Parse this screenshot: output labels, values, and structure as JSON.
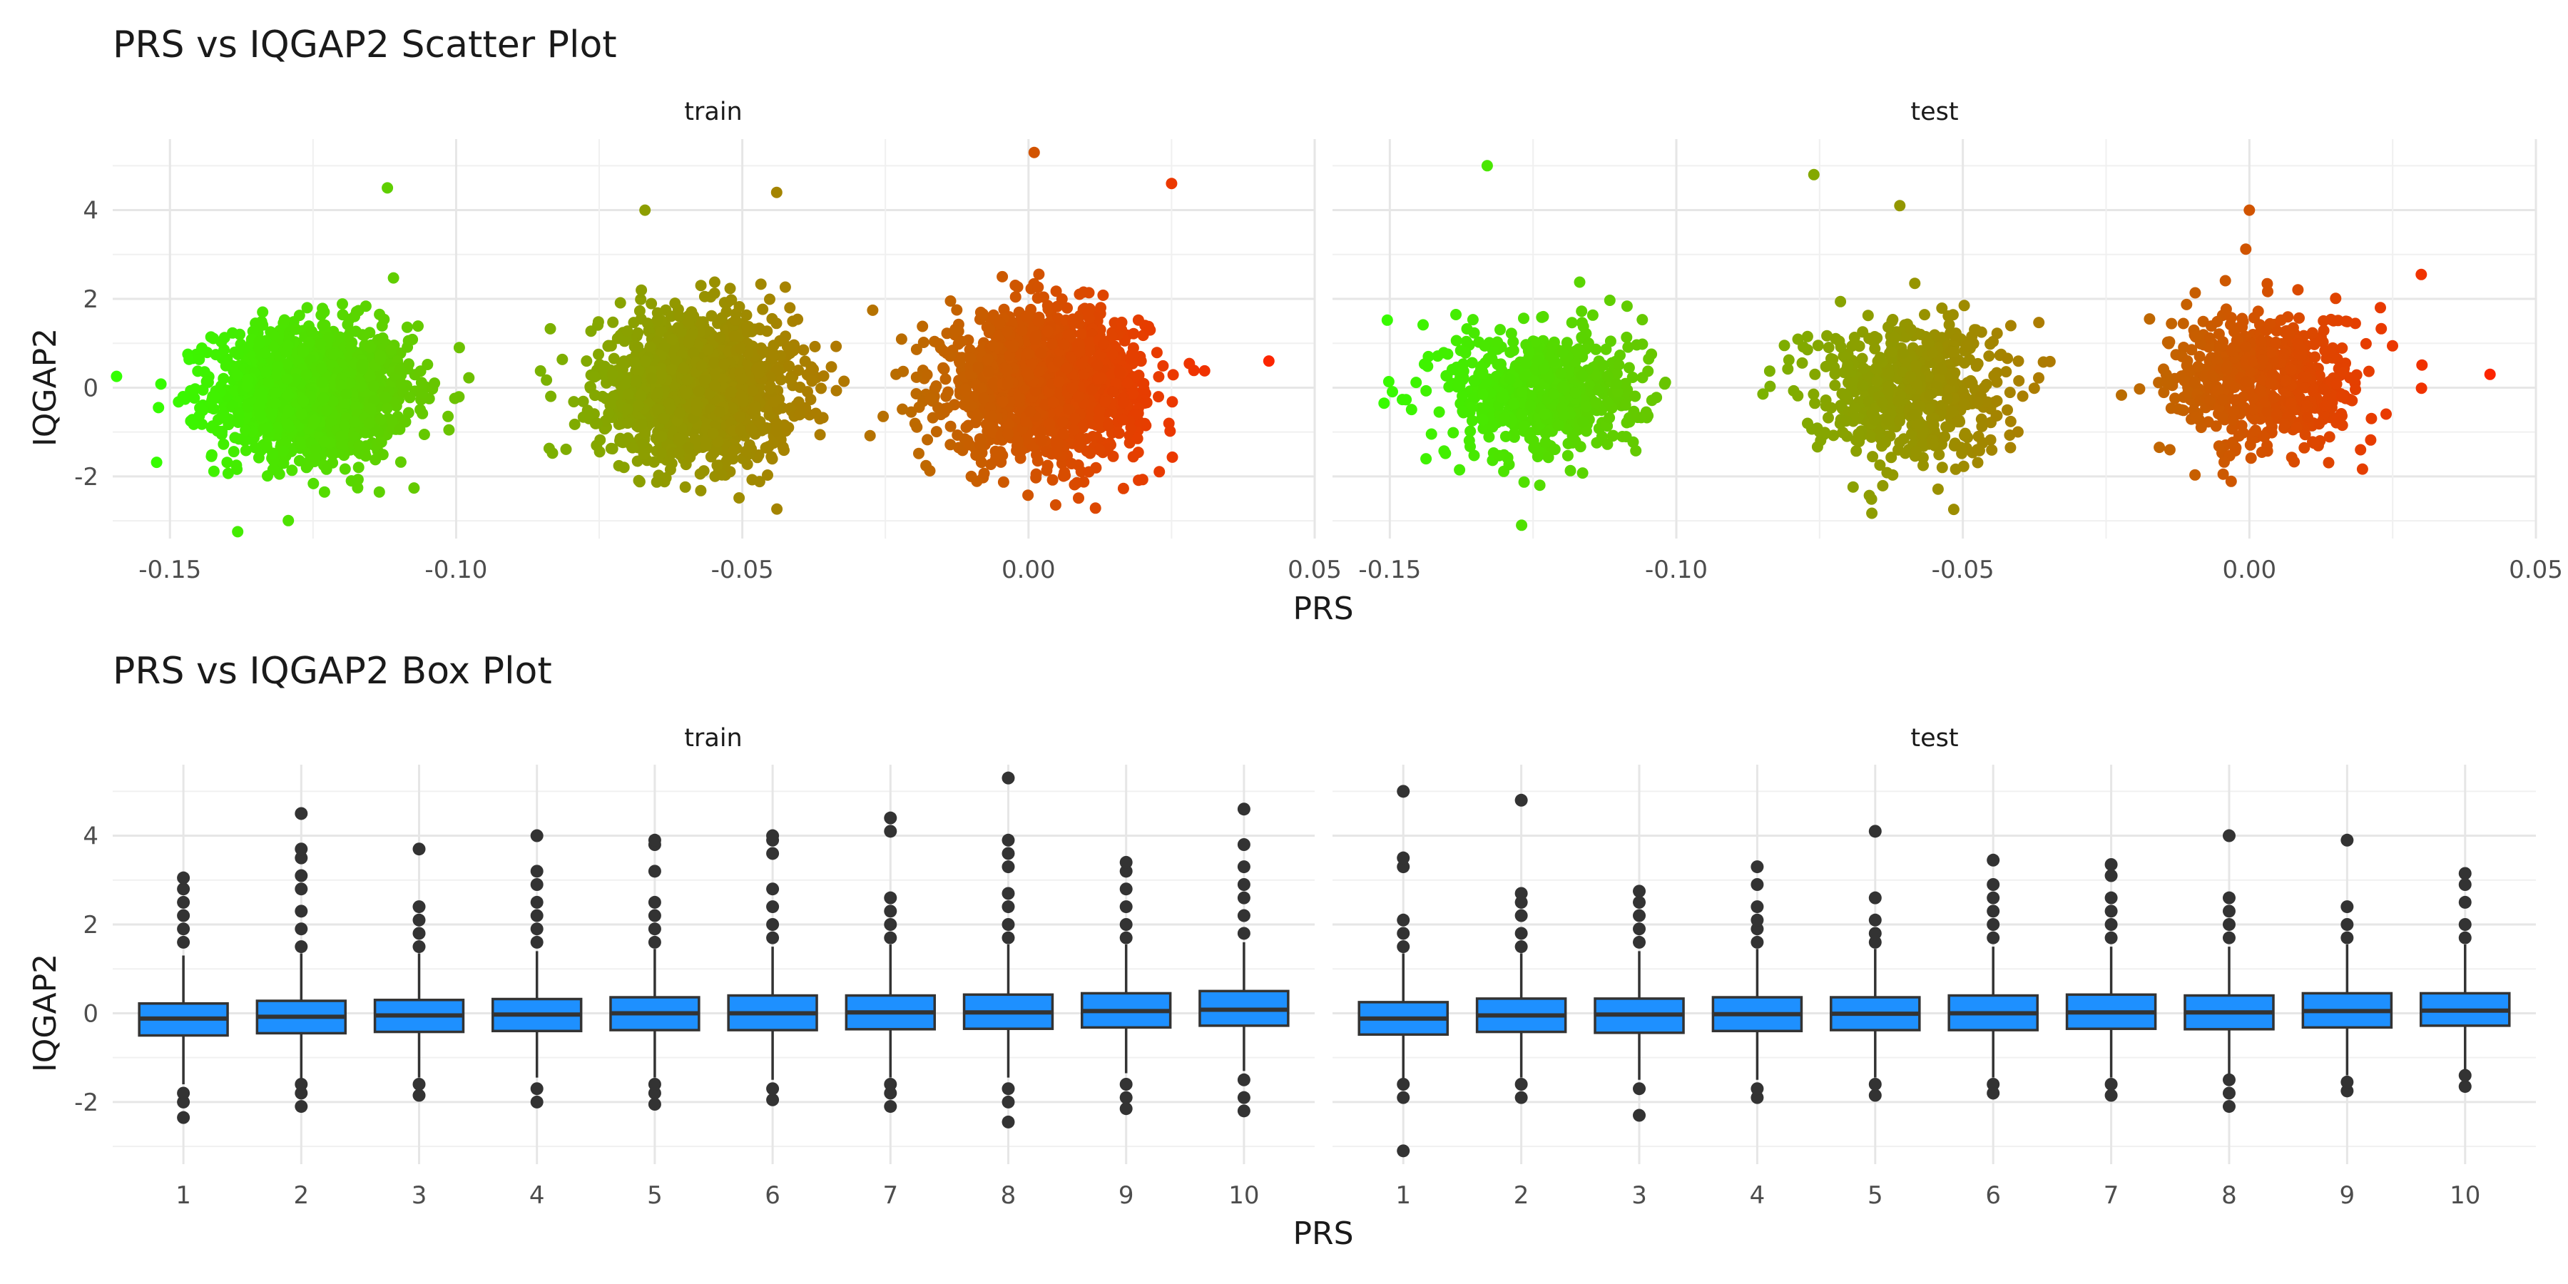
{
  "chart_data": [
    {
      "type": "scatter",
      "title": "PRS vs IQGAP2 Scatter Plot",
      "xlabel": "PRS",
      "ylabel": "IQGAP2",
      "panels": [
        {
          "name": "train",
          "clusters": [
            {
              "x_center": -0.125,
              "x_sd": 0.0085,
              "y_mean": -0.1,
              "y_sd": 0.75,
              "n": 1500
            },
            {
              "x_center": -0.058,
              "x_sd": 0.0085,
              "y_mean": 0.0,
              "y_sd": 0.8,
              "n": 1500
            },
            {
              "x_center": 0.003,
              "x_sd": 0.0085,
              "y_mean": 0.1,
              "y_sd": 0.8,
              "n": 1500
            }
          ],
          "outliers": [
            {
              "x": -0.152,
              "y": -0.45
            },
            {
              "x": -0.112,
              "y": 4.5
            },
            {
              "x": -0.044,
              "y": 4.4
            },
            {
              "x": 0.001,
              "y": 5.3
            },
            {
              "x": 0.025,
              "y": 4.6
            },
            {
              "x": 0.042,
              "y": 0.6
            },
            {
              "x": -0.123,
              "y": -2.35
            },
            {
              "x": -0.01,
              "y": -2.0
            },
            {
              "x": -0.067,
              "y": 4.0
            }
          ]
        },
        {
          "name": "test",
          "clusters": [
            {
              "x_center": -0.123,
              "x_sd": 0.0085,
              "y_mean": -0.1,
              "y_sd": 0.75,
              "n": 600
            },
            {
              "x_center": -0.06,
              "x_sd": 0.0085,
              "y_mean": 0.0,
              "y_sd": 0.8,
              "n": 600
            },
            {
              "x_center": 0.003,
              "x_sd": 0.0085,
              "y_mean": 0.1,
              "y_sd": 0.8,
              "n": 600
            }
          ],
          "outliers": [
            {
              "x": -0.133,
              "y": 5.0
            },
            {
              "x": -0.076,
              "y": 4.8
            },
            {
              "x": -0.127,
              "y": -3.1
            },
            {
              "x": 0.042,
              "y": 0.3
            },
            {
              "x": -0.061,
              "y": 4.1
            },
            {
              "x": 0.0,
              "y": 4.0
            },
            {
              "x": -0.151,
              "y": -0.35
            },
            {
              "x": 0.03,
              "y": 2.55
            }
          ]
        }
      ],
      "xlim": [
        -0.16,
        0.05
      ],
      "ylim": [
        -3.4,
        5.6
      ],
      "xticks": [
        -0.15,
        -0.1,
        -0.05,
        0.0,
        0.05
      ],
      "xtick_labels": [
        "-0.15",
        "-0.10",
        "-0.05",
        "0.00",
        "0.05"
      ],
      "yticks": [
        -2,
        0,
        2,
        4
      ],
      "ytick_labels": [
        "-2",
        "0",
        "2",
        "4"
      ],
      "color_scale": {
        "low": "#33ff00",
        "high": "#ff2200"
      },
      "grid": true
    },
    {
      "type": "box",
      "title": "PRS vs IQGAP2 Box Plot",
      "xlabel": "PRS",
      "ylabel": "IQGAP2",
      "categories": [
        "1",
        "2",
        "3",
        "4",
        "5",
        "6",
        "7",
        "8",
        "9",
        "10"
      ],
      "fill_color": "#1e90ff",
      "panels": [
        {
          "name": "train",
          "boxes": [
            {
              "q1": -0.5,
              "median": -0.12,
              "q3": 0.22,
              "whisker_low": -1.6,
              "whisker_high": 1.3,
              "outliers": [
                -2.35,
                -2.0,
                -1.8,
                1.6,
                1.9,
                2.2,
                2.5,
                2.8,
                3.05
              ]
            },
            {
              "q1": -0.45,
              "median": -0.08,
              "q3": 0.28,
              "whisker_low": -1.5,
              "whisker_high": 1.35,
              "outliers": [
                -2.1,
                -1.8,
                -1.6,
                1.5,
                1.9,
                2.3,
                2.8,
                3.1,
                3.5,
                3.7,
                4.5
              ]
            },
            {
              "q1": -0.42,
              "median": -0.05,
              "q3": 0.3,
              "whisker_low": -1.45,
              "whisker_high": 1.35,
              "outliers": [
                -1.85,
                -1.6,
                1.5,
                1.8,
                2.1,
                2.4,
                3.7
              ]
            },
            {
              "q1": -0.4,
              "median": -0.03,
              "q3": 0.32,
              "whisker_low": -1.45,
              "whisker_high": 1.4,
              "outliers": [
                -2.0,
                -1.7,
                1.6,
                1.9,
                2.2,
                2.5,
                2.9,
                3.2,
                4.0
              ]
            },
            {
              "q1": -0.38,
              "median": 0.0,
              "q3": 0.36,
              "whisker_low": -1.45,
              "whisker_high": 1.45,
              "outliers": [
                -2.05,
                -1.8,
                -1.6,
                1.6,
                1.9,
                2.2,
                2.5,
                3.2,
                3.8,
                3.9
              ]
            },
            {
              "q1": -0.38,
              "median": 0.0,
              "q3": 0.4,
              "whisker_low": -1.5,
              "whisker_high": 1.5,
              "outliers": [
                -1.95,
                -1.7,
                1.7,
                2.0,
                2.4,
                2.8,
                3.6,
                3.9,
                4.0
              ]
            },
            {
              "q1": -0.36,
              "median": 0.02,
              "q3": 0.4,
              "whisker_low": -1.45,
              "whisker_high": 1.55,
              "outliers": [
                -2.1,
                -1.8,
                -1.6,
                1.7,
                2.0,
                2.3,
                2.6,
                4.1,
                4.4
              ]
            },
            {
              "q1": -0.35,
              "median": 0.02,
              "q3": 0.42,
              "whisker_low": -1.45,
              "whisker_high": 1.55,
              "outliers": [
                -2.45,
                -2.0,
                -1.7,
                1.7,
                2.0,
                2.4,
                2.7,
                3.3,
                3.6,
                3.9,
                5.3
              ]
            },
            {
              "q1": -0.32,
              "median": 0.05,
              "q3": 0.45,
              "whisker_low": -1.35,
              "whisker_high": 1.55,
              "outliers": [
                -2.15,
                -1.9,
                -1.6,
                1.7,
                2.0,
                2.4,
                2.8,
                3.2,
                3.4
              ]
            },
            {
              "q1": -0.28,
              "median": 0.08,
              "q3": 0.5,
              "whisker_low": -1.3,
              "whisker_high": 1.6,
              "outliers": [
                -2.2,
                -1.9,
                -1.5,
                1.8,
                2.2,
                2.6,
                2.9,
                3.3,
                3.8,
                4.6
              ]
            }
          ]
        },
        {
          "name": "test",
          "boxes": [
            {
              "q1": -0.48,
              "median": -0.12,
              "q3": 0.25,
              "whisker_low": -1.5,
              "whisker_high": 1.35,
              "outliers": [
                -3.1,
                -1.9,
                -1.6,
                1.5,
                1.8,
                2.1,
                3.3,
                3.5,
                5.0
              ]
            },
            {
              "q1": -0.42,
              "median": -0.05,
              "q3": 0.33,
              "whisker_low": -1.45,
              "whisker_high": 1.35,
              "outliers": [
                -1.9,
                -1.6,
                1.5,
                1.8,
                2.2,
                2.5,
                2.7,
                4.8
              ]
            },
            {
              "q1": -0.44,
              "median": -0.03,
              "q3": 0.33,
              "whisker_low": -1.5,
              "whisker_high": 1.4,
              "outliers": [
                -2.3,
                -1.7,
                1.6,
                1.9,
                2.2,
                2.5,
                2.75
              ]
            },
            {
              "q1": -0.4,
              "median": -0.02,
              "q3": 0.36,
              "whisker_low": -1.5,
              "whisker_high": 1.45,
              "outliers": [
                -1.9,
                -1.7,
                1.6,
                1.9,
                2.1,
                2.4,
                2.9,
                3.3
              ]
            },
            {
              "q1": -0.38,
              "median": -0.01,
              "q3": 0.36,
              "whisker_low": -1.45,
              "whisker_high": 1.45,
              "outliers": [
                -1.85,
                -1.6,
                1.6,
                1.8,
                2.1,
                2.6,
                4.1
              ]
            },
            {
              "q1": -0.38,
              "median": 0.0,
              "q3": 0.4,
              "whisker_low": -1.45,
              "whisker_high": 1.5,
              "outliers": [
                -1.8,
                -1.6,
                1.7,
                2.0,
                2.3,
                2.6,
                2.9,
                3.45
              ]
            },
            {
              "q1": -0.35,
              "median": 0.02,
              "q3": 0.42,
              "whisker_low": -1.45,
              "whisker_high": 1.5,
              "outliers": [
                -1.85,
                -1.6,
                1.7,
                2.0,
                2.3,
                2.6,
                3.1,
                3.35
              ]
            },
            {
              "q1": -0.36,
              "median": 0.02,
              "q3": 0.4,
              "whisker_low": -1.45,
              "whisker_high": 1.5,
              "outliers": [
                -2.1,
                -1.8,
                -1.5,
                1.7,
                2.0,
                2.3,
                2.6,
                4.0
              ]
            },
            {
              "q1": -0.32,
              "median": 0.05,
              "q3": 0.45,
              "whisker_low": -1.4,
              "whisker_high": 1.55,
              "outliers": [
                -1.75,
                -1.55,
                1.7,
                2.0,
                2.4,
                3.9
              ]
            },
            {
              "q1": -0.28,
              "median": 0.06,
              "q3": 0.45,
              "whisker_low": -1.3,
              "whisker_high": 1.55,
              "outliers": [
                -1.65,
                -1.4,
                1.7,
                2.0,
                2.5,
                2.9,
                3.15
              ]
            }
          ]
        }
      ],
      "ylim": [
        -3.4,
        5.6
      ],
      "yticks": [
        -2,
        0,
        2,
        4
      ],
      "ytick_labels": [
        "-2",
        "0",
        "2",
        "4"
      ],
      "grid": true
    }
  ]
}
